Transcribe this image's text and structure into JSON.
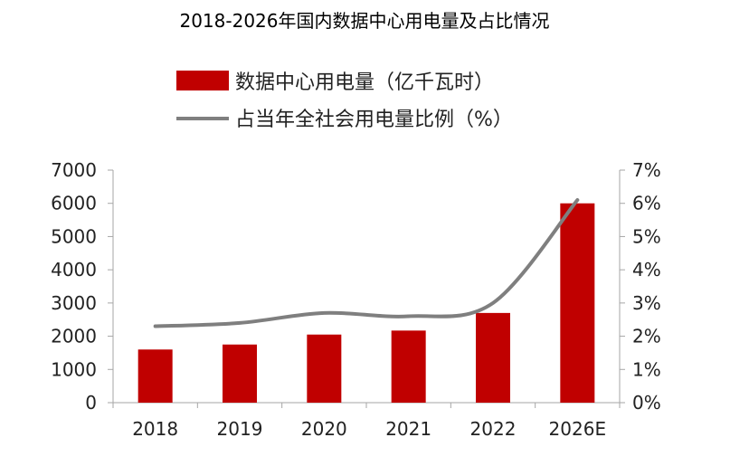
{
  "chart_data": {
    "type": "bar",
    "title": "2018-2026年国内数据中心用电量及占比情况",
    "categories": [
      "2018",
      "2019",
      "2020",
      "2021",
      "2022",
      "2026E"
    ],
    "series": [
      {
        "name": "数据中心用电量（亿千瓦时）",
        "type": "bar",
        "axis": "left",
        "color": "#c00000",
        "values": [
          1600,
          1750,
          2050,
          2170,
          2700,
          6000
        ]
      },
      {
        "name": "占当年全社会用电量比例（%）",
        "type": "line",
        "axis": "right",
        "color": "#7f7f7f",
        "values": [
          2.3,
          2.4,
          2.7,
          2.6,
          3.0,
          6.1
        ]
      }
    ],
    "y_left": {
      "min": 0,
      "max": 7000,
      "ticks": [
        "0",
        "1000",
        "2000",
        "3000",
        "4000",
        "5000",
        "6000",
        "7000"
      ]
    },
    "y_right": {
      "min": 0,
      "max": 7,
      "ticks": [
        "0%",
        "1%",
        "2%",
        "3%",
        "4%",
        "5%",
        "6%",
        "7%"
      ]
    },
    "xlabel": "",
    "ylabel": "",
    "grid": false,
    "legend_position": "top"
  }
}
